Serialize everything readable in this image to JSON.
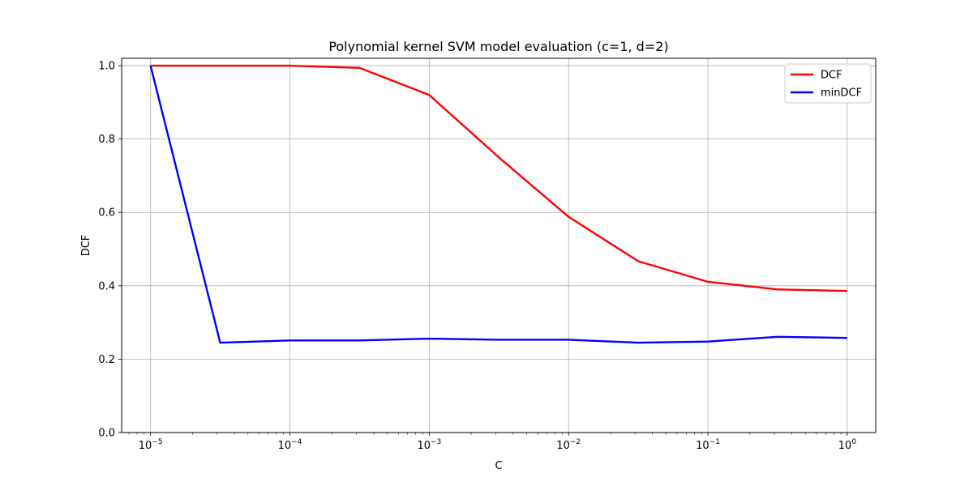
{
  "chart_data": {
    "type": "line",
    "title": "Polynomial kernel SVM model evaluation (c=1, d=2)",
    "xlabel": "C",
    "ylabel": "DCF",
    "xscale": "log",
    "xlim": [
      6.2e-06,
      1.6
    ],
    "ylim": [
      0,
      1.02
    ],
    "grid": true,
    "legend_position": "top-right",
    "x": [
      1e-05,
      3.16e-05,
      0.0001,
      0.000316,
      0.001,
      0.00316,
      0.01,
      0.0316,
      0.1,
      0.316,
      1
    ],
    "x_ticks": [
      {
        "value": 1e-05,
        "base": "10",
        "exp": "−5"
      },
      {
        "value": 0.0001,
        "base": "10",
        "exp": "−4"
      },
      {
        "value": 0.001,
        "base": "10",
        "exp": "−3"
      },
      {
        "value": 0.01,
        "base": "10",
        "exp": "−2"
      },
      {
        "value": 0.1,
        "base": "10",
        "exp": "−1"
      },
      {
        "value": 1,
        "base": "10",
        "exp": "0"
      }
    ],
    "y_ticks": [
      "0.0",
      "0.2",
      "0.4",
      "0.6",
      "0.8",
      "1.0"
    ],
    "series": [
      {
        "name": "DCF",
        "color": "#ff0000",
        "values": [
          1.0,
          1.0,
          1.0,
          0.994,
          0.92,
          0.75,
          0.588,
          0.467,
          0.411,
          0.39,
          0.386
        ]
      },
      {
        "name": "minDCF",
        "color": "#0000ff",
        "values": [
          1.0,
          0.245,
          0.251,
          0.251,
          0.256,
          0.253,
          0.253,
          0.245,
          0.248,
          0.261,
          0.258
        ]
      }
    ]
  }
}
